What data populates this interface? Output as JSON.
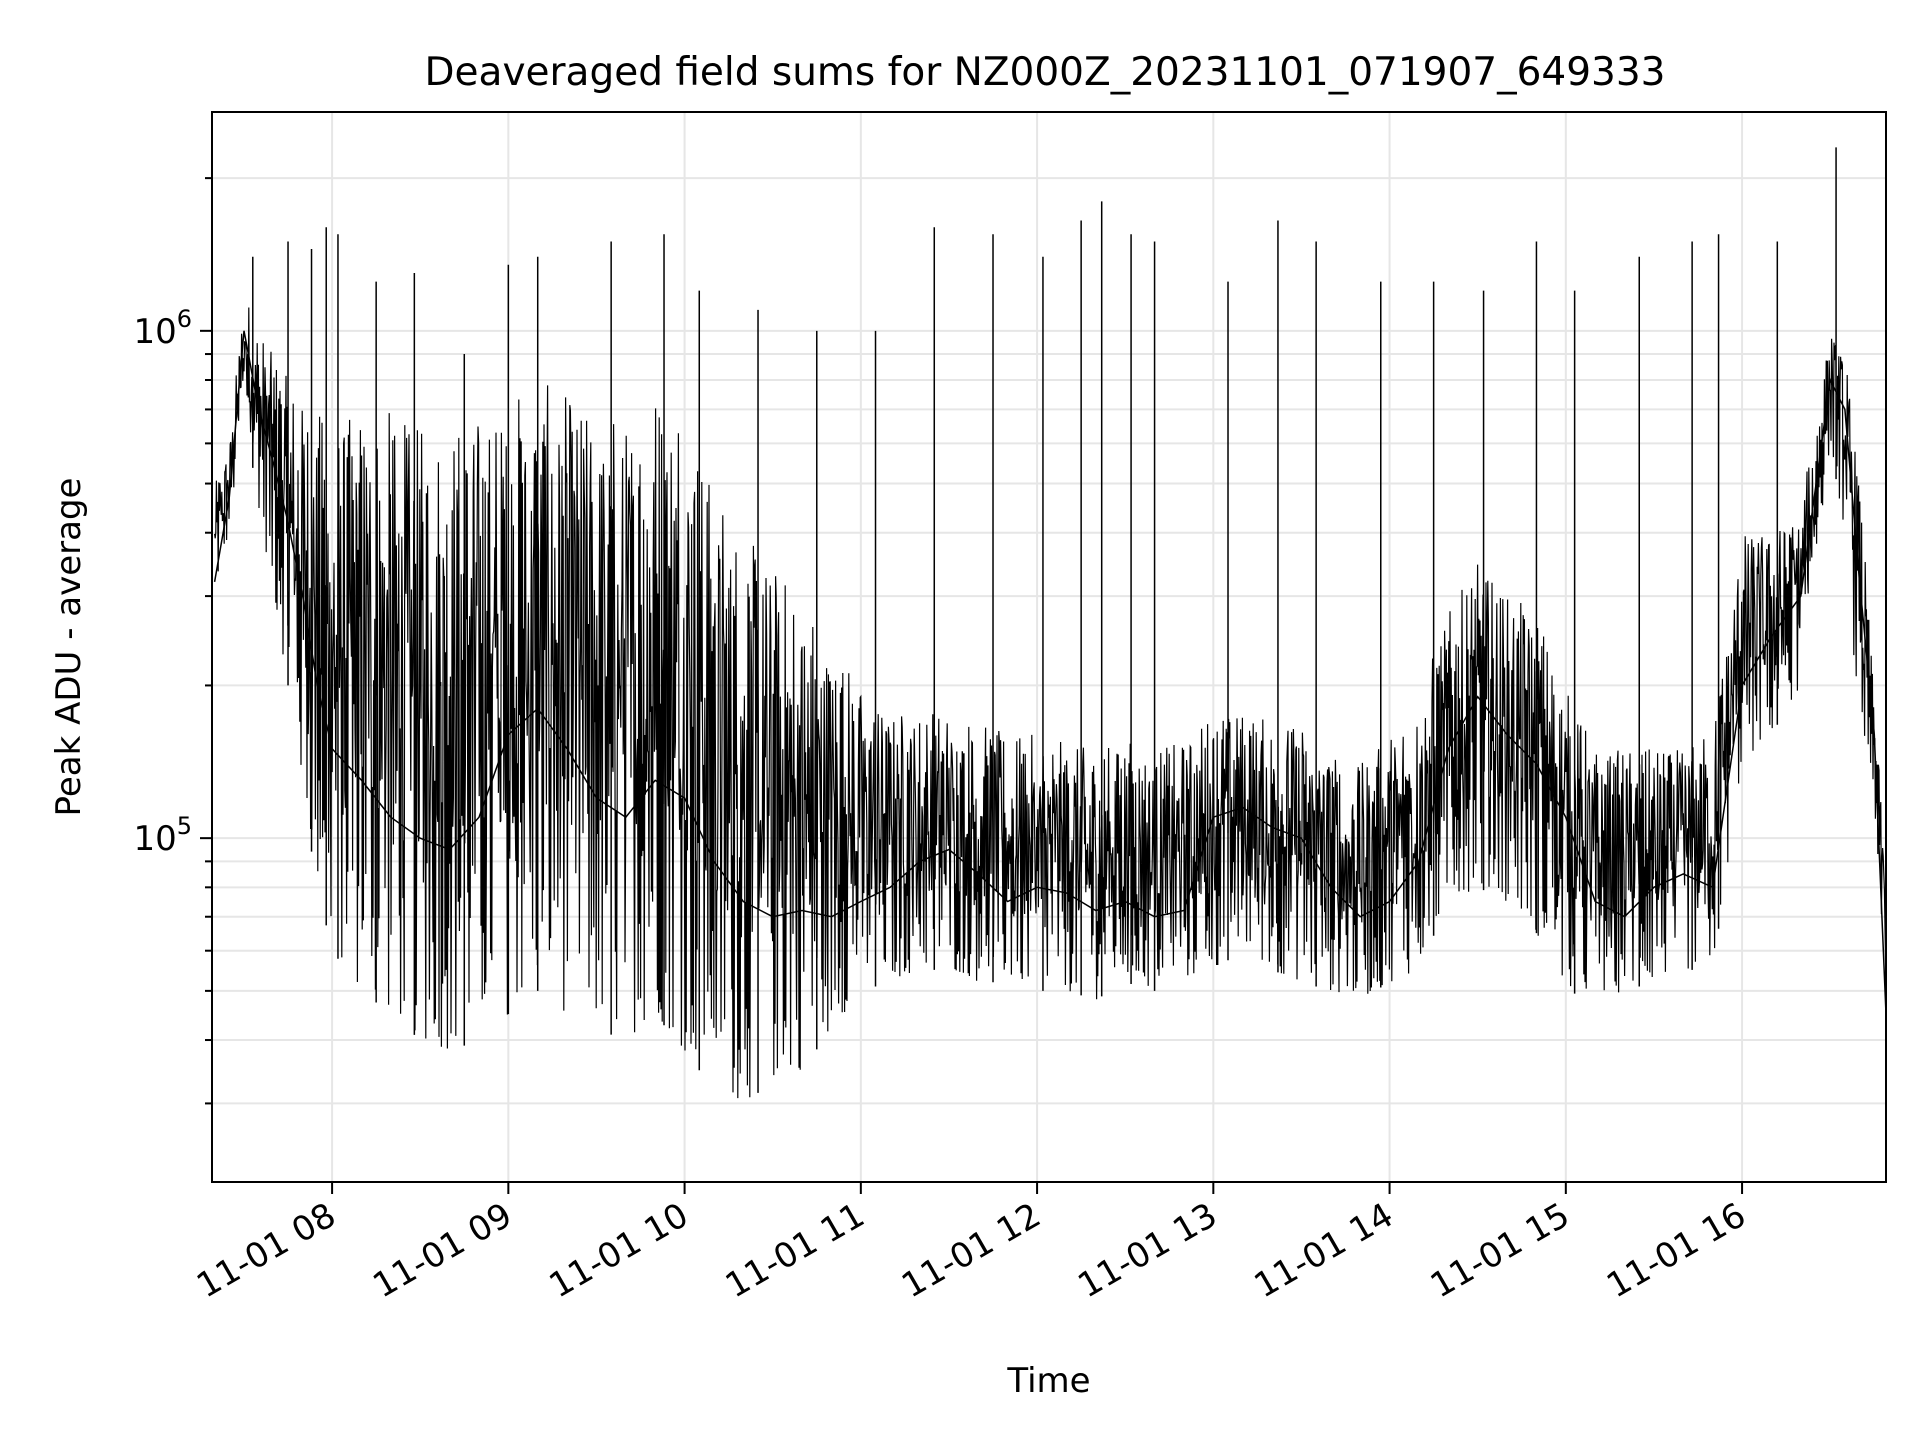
{
  "chart_data": {
    "type": "line",
    "title": "Deaveraged field sums for NZ000Z_20231101_071907_649333",
    "xlabel": "Time",
    "ylabel": "Peak ADU - average",
    "xscale": "time",
    "yscale": "log",
    "xlim": [
      "2023-11-01 07:19:07",
      "2023-11-01 16:49"
    ],
    "ylim": [
      21000,
      2700000
    ],
    "grid": true,
    "x_ticks": [
      "11-01 08",
      "11-01 09",
      "11-01 10",
      "11-01 11",
      "11-01 12",
      "11-01 13",
      "11-01 14",
      "11-01 15",
      "11-01 16"
    ],
    "y_ticks": [
      {
        "base": "10",
        "exp": "5",
        "value": 100000
      },
      {
        "base": "10",
        "exp": "6",
        "value": 1000000
      }
    ],
    "series": [
      {
        "color": "#000000",
        "x": [
          "07:20",
          "07:25",
          "07:30",
          "07:35",
          "07:40",
          "07:45",
          "07:50",
          "07:55",
          "08:00",
          "08:10",
          "08:20",
          "08:30",
          "08:40",
          "08:50",
          "09:00",
          "09:10",
          "09:20",
          "09:30",
          "09:40",
          "09:50",
          "10:00",
          "10:10",
          "10:20",
          "10:30",
          "10:40",
          "10:50",
          "11:00",
          "11:10",
          "11:20",
          "11:30",
          "11:40",
          "11:50",
          "12:00",
          "12:10",
          "12:20",
          "12:30",
          "12:40",
          "12:50",
          "13:00",
          "13:10",
          "13:20",
          "13:30",
          "13:40",
          "13:50",
          "14:00",
          "14:10",
          "14:20",
          "14:30",
          "14:40",
          "14:50",
          "15:00",
          "15:10",
          "15:20",
          "15:30",
          "15:40",
          "15:50",
          "16:00",
          "16:10",
          "16:20",
          "16:30",
          "16:35",
          "16:40",
          "16:45",
          "16:49"
        ],
        "y": [
          320000,
          470000,
          1000000,
          700000,
          550000,
          420000,
          300000,
          200000,
          150000,
          130000,
          110000,
          100000,
          95000,
          110000,
          160000,
          180000,
          150000,
          120000,
          110000,
          130000,
          120000,
          90000,
          75000,
          70000,
          72000,
          70000,
          75000,
          80000,
          90000,
          95000,
          85000,
          75000,
          80000,
          78000,
          72000,
          75000,
          70000,
          72000,
          110000,
          115000,
          105000,
          100000,
          80000,
          70000,
          75000,
          90000,
          150000,
          190000,
          160000,
          140000,
          110000,
          75000,
          70000,
          80000,
          85000,
          80000,
          200000,
          250000,
          300000,
          800000,
          700000,
          320000,
          160000,
          45000
        ],
        "band_low": [
          300000,
          400000,
          700000,
          450000,
          300000,
          200000,
          120000,
          80000,
          60000,
          50000,
          45000,
          40000,
          38000,
          40000,
          45000,
          50000,
          45000,
          42000,
          40000,
          45000,
          38000,
          32000,
          30000,
          33000,
          35000,
          42000,
          50000,
          52000,
          55000,
          55000,
          52000,
          52000,
          50000,
          50000,
          48000,
          52000,
          50000,
          52000,
          55000,
          60000,
          55000,
          52000,
          50000,
          48000,
          52000,
          55000,
          75000,
          80000,
          75000,
          65000,
          50000,
          48000,
          50000,
          52000,
          55000,
          55000,
          140000,
          160000,
          200000,
          600000,
          400000,
          160000,
          120000,
          40000
        ],
        "band_high": [
          500000,
          600000,
          1200000,
          1000000,
          900000,
          800000,
          750000,
          700000,
          650000,
          700000,
          700000,
          650000,
          650000,
          700000,
          750000,
          800000,
          750000,
          700000,
          700000,
          800000,
          800000,
          500000,
          400000,
          350000,
          300000,
          250000,
          200000,
          180000,
          180000,
          180000,
          170000,
          160000,
          160000,
          155000,
          150000,
          160000,
          150000,
          155000,
          180000,
          180000,
          170000,
          170000,
          150000,
          140000,
          160000,
          200000,
          280000,
          350000,
          300000,
          280000,
          200000,
          150000,
          150000,
          150000,
          150000,
          170000,
          400000,
          400000,
          450000,
          1000000,
          900000,
          500000,
          180000,
          90000
        ]
      }
    ],
    "spikes": [
      {
        "x": "07:33",
        "y": 1400000
      },
      {
        "x": "07:45",
        "y": 1500000
      },
      {
        "x": "07:53",
        "y": 1450000
      },
      {
        "x": "07:58",
        "y": 1600000
      },
      {
        "x": "08:02",
        "y": 1550000
      },
      {
        "x": "08:15",
        "y": 1250000
      },
      {
        "x": "08:28",
        "y": 1300000
      },
      {
        "x": "08:45",
        "y": 900000
      },
      {
        "x": "09:00",
        "y": 1350000
      },
      {
        "x": "09:10",
        "y": 1400000
      },
      {
        "x": "09:35",
        "y": 1500000
      },
      {
        "x": "09:53",
        "y": 1550000
      },
      {
        "x": "10:05",
        "y": 1200000
      },
      {
        "x": "10:25",
        "y": 1100000
      },
      {
        "x": "10:45",
        "y": 1000000
      },
      {
        "x": "11:05",
        "y": 1000000
      },
      {
        "x": "11:25",
        "y": 1600000
      },
      {
        "x": "11:45",
        "y": 1550000
      },
      {
        "x": "12:02",
        "y": 1400000
      },
      {
        "x": "12:15",
        "y": 1650000
      },
      {
        "x": "12:22",
        "y": 1800000
      },
      {
        "x": "12:32",
        "y": 1550000
      },
      {
        "x": "12:40",
        "y": 1500000
      },
      {
        "x": "13:05",
        "y": 1250000
      },
      {
        "x": "13:22",
        "y": 1650000
      },
      {
        "x": "13:35",
        "y": 1500000
      },
      {
        "x": "13:57",
        "y": 1250000
      },
      {
        "x": "14:15",
        "y": 1250000
      },
      {
        "x": "14:32",
        "y": 1200000
      },
      {
        "x": "14:50",
        "y": 1500000
      },
      {
        "x": "15:03",
        "y": 1200000
      },
      {
        "x": "15:25",
        "y": 1400000
      },
      {
        "x": "15:43",
        "y": 1500000
      },
      {
        "x": "15:52",
        "y": 1550000
      },
      {
        "x": "16:12",
        "y": 1500000
      },
      {
        "x": "16:32",
        "y": 2300000
      }
    ]
  }
}
